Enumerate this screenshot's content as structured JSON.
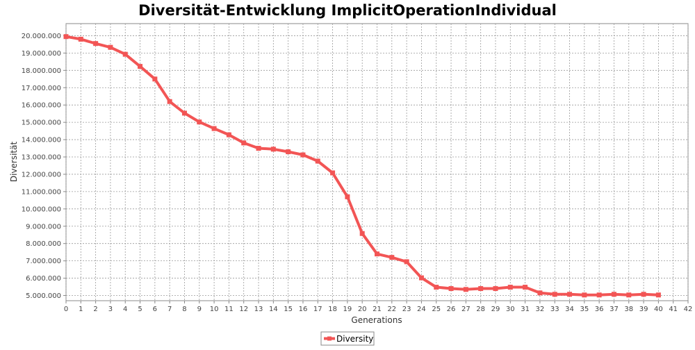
{
  "chart_data": {
    "type": "line",
    "title": "Diversität-Entwicklung ImplicitOperationIndividual",
    "xlabel": "Generations",
    "ylabel": "Diversität",
    "xlim": [
      0,
      42
    ],
    "ylim": [
      4700000,
      20700000
    ],
    "x_ticks": [
      0,
      1,
      2,
      3,
      4,
      5,
      6,
      7,
      8,
      9,
      10,
      11,
      12,
      13,
      14,
      15,
      16,
      17,
      18,
      19,
      20,
      21,
      22,
      23,
      24,
      25,
      26,
      27,
      28,
      29,
      30,
      31,
      32,
      33,
      34,
      35,
      36,
      37,
      38,
      39,
      40,
      41,
      42
    ],
    "x_tick_labels": [
      "0",
      "1",
      "2",
      "3",
      "4",
      "5",
      "6",
      "7",
      "8",
      "9",
      "10",
      "11",
      "12",
      "13",
      "14",
      "15",
      "16",
      "17",
      "18",
      "19",
      "20",
      "21",
      "22",
      "23",
      "24",
      "25",
      "26",
      "27",
      "28",
      "29",
      "30",
      "31",
      "32",
      "33",
      "34",
      "35",
      "36",
      "37",
      "38",
      "39",
      "40",
      "41",
      "42"
    ],
    "y_ticks": [
      5000000,
      6000000,
      7000000,
      8000000,
      9000000,
      10000000,
      11000000,
      12000000,
      13000000,
      14000000,
      15000000,
      16000000,
      17000000,
      18000000,
      19000000,
      20000000
    ],
    "y_tick_labels": [
      "5.000.000",
      "6.000.000",
      "7.000.000",
      "8.000.000",
      "9.000.000",
      "10.000.000",
      "11.000.000",
      "12.000.000",
      "13.000.000",
      "14.000.000",
      "15.000.000",
      "16.000.000",
      "17.000.000",
      "18.000.000",
      "19.000.000",
      "20.000.000"
    ],
    "grid": true,
    "legend_position": "bottom-center",
    "colors": {
      "series": "#f25555",
      "plot_background": "#ffffff",
      "grid": "#999999",
      "axis": "#888888"
    },
    "series": [
      {
        "name": "Diversity",
        "x": [
          0,
          1,
          2,
          3,
          4,
          5,
          6,
          7,
          8,
          9,
          10,
          11,
          12,
          13,
          14,
          15,
          16,
          17,
          18,
          19,
          20,
          21,
          22,
          23,
          24,
          25,
          26,
          27,
          28,
          29,
          30,
          31,
          32,
          33,
          34,
          35,
          36,
          37,
          38,
          39,
          40
        ],
        "values": [
          19950000,
          19800000,
          19550000,
          19330000,
          18930000,
          18230000,
          17500000,
          16200000,
          15530000,
          15020000,
          14640000,
          14280000,
          13810000,
          13500000,
          13450000,
          13300000,
          13120000,
          12760000,
          12080000,
          10700000,
          8580000,
          7400000,
          7200000,
          6950000,
          6020000,
          5480000,
          5400000,
          5350000,
          5400000,
          5400000,
          5480000,
          5480000,
          5150000,
          5070000,
          5070000,
          5030000,
          5030000,
          5070000,
          5030000,
          5070000,
          5030000
        ]
      }
    ]
  }
}
